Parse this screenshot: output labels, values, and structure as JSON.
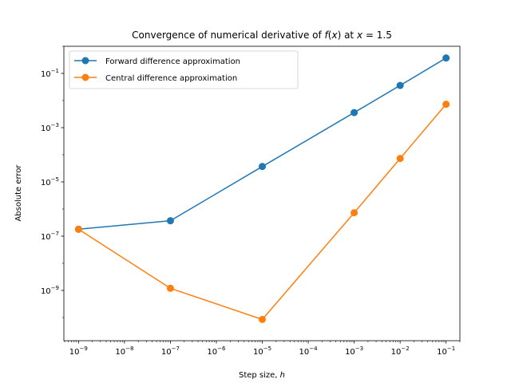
{
  "chart_data": {
    "type": "line",
    "title_parts": [
      "Convergence of numerical derivative of ",
      "f",
      "(",
      "x",
      ") at ",
      "x",
      " = 1.5"
    ],
    "xlabel_parts": [
      "Step size, ",
      "h"
    ],
    "ylabel": "Absolute error",
    "x_scale": "log",
    "y_scale": "log",
    "xlim": [
      4.8e-10,
      0.2
    ],
    "ylim": [
      1.4e-11,
      1.0
    ],
    "x_ticks": [
      {
        "value": 1e-09,
        "base": "10",
        "exp": "−9"
      },
      {
        "value": 1e-08,
        "base": "10",
        "exp": "−8"
      },
      {
        "value": 1e-07,
        "base": "10",
        "exp": "−7"
      },
      {
        "value": 1e-06,
        "base": "10",
        "exp": "−6"
      },
      {
        "value": 1e-05,
        "base": "10",
        "exp": "−5"
      },
      {
        "value": 0.0001,
        "base": "10",
        "exp": "−4"
      },
      {
        "value": 0.001,
        "base": "10",
        "exp": "−3"
      },
      {
        "value": 0.01,
        "base": "10",
        "exp": "−2"
      },
      {
        "value": 0.1,
        "base": "10",
        "exp": "−1"
      }
    ],
    "y_ticks": [
      {
        "value": 1e-09,
        "base": "10",
        "exp": "−9"
      },
      {
        "value": 1e-07,
        "base": "10",
        "exp": "−7"
      },
      {
        "value": 1e-05,
        "base": "10",
        "exp": "−5"
      },
      {
        "value": 0.001,
        "base": "10",
        "exp": "−3"
      },
      {
        "value": 0.1,
        "base": "10",
        "exp": "−1"
      }
    ],
    "grid": false,
    "legend_position": "upper left",
    "series": [
      {
        "name": "Forward difference approximation",
        "color": "#1f77b4",
        "x": [
          1e-09,
          1e-07,
          1e-05,
          0.001,
          0.01,
          0.1
        ],
        "y": [
          1.8e-07,
          3.7e-07,
          3.7e-05,
          0.0036,
          0.036,
          0.37
        ]
      },
      {
        "name": "Central difference approximation",
        "color": "#ff7f0e",
        "x": [
          1e-09,
          1e-07,
          1e-05,
          0.001,
          0.01,
          0.1
        ],
        "y": [
          1.8e-07,
          1.2e-09,
          8.5e-11,
          7.3e-07,
          7.3e-05,
          0.0073
        ]
      }
    ]
  }
}
